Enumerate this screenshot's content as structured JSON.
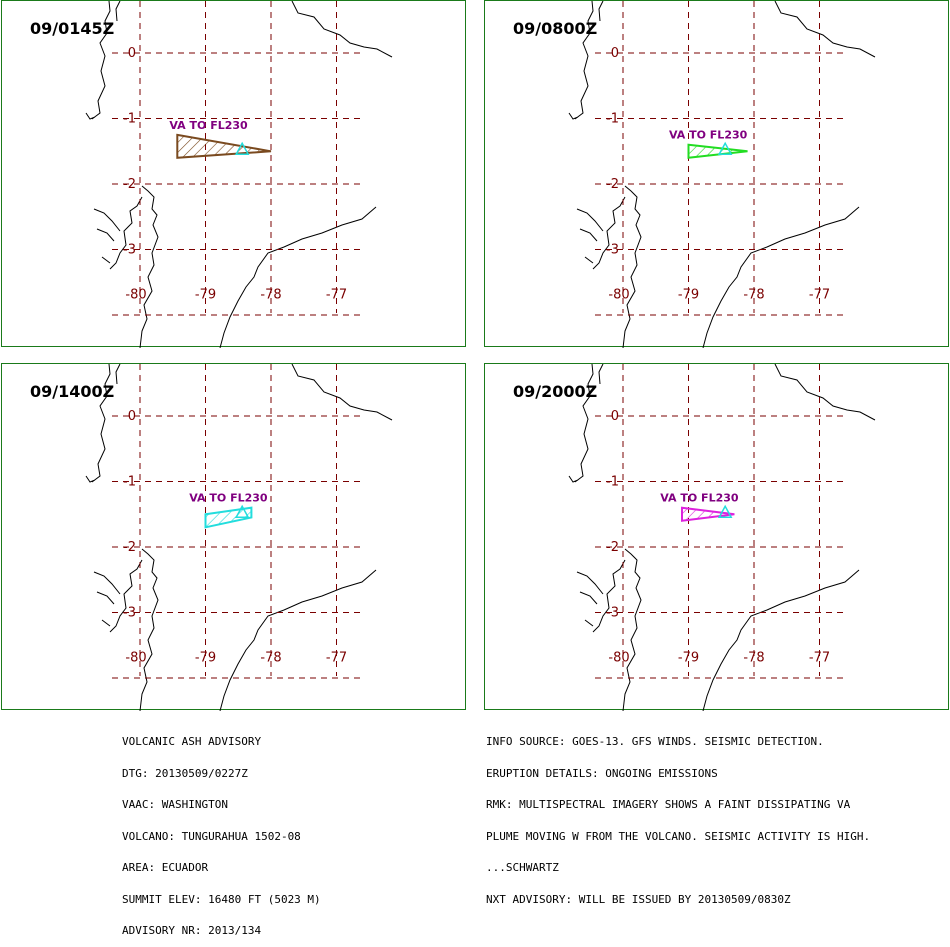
{
  "panels": [
    {
      "time": "09/0145Z",
      "label": "VA TO FL230",
      "color": "#7a4a1f",
      "polygon": [
        [
          -79.43,
          -1.25
        ],
        [
          -78.0,
          -1.5
        ],
        [
          -79.43,
          -1.6
        ]
      ]
    },
    {
      "time": "09/0800Z",
      "label": "VA TO FL230",
      "color": "#22dd22",
      "polygon": [
        [
          -79.0,
          -1.4
        ],
        [
          -78.1,
          -1.5
        ],
        [
          -79.0,
          -1.6
        ]
      ]
    },
    {
      "time": "09/1400Z",
      "label": "VA TO FL230",
      "color": "#22dddd",
      "polygon": [
        [
          -79.0,
          -1.5
        ],
        [
          -78.3,
          -1.4
        ],
        [
          -78.3,
          -1.55
        ],
        [
          -79.0,
          -1.7
        ]
      ]
    },
    {
      "time": "09/2000Z",
      "label": "VA TO FL230",
      "color": "#dd22dd",
      "polygon": [
        [
          -79.1,
          -1.4
        ],
        [
          -78.3,
          -1.5
        ],
        [
          -79.1,
          -1.6
        ]
      ]
    }
  ],
  "grid": {
    "lat_labels": [
      "0",
      "-1",
      "-2",
      "-3"
    ],
    "lon_labels": [
      "-80",
      "-79",
      "-78",
      "-77"
    ]
  },
  "volcano": {
    "lon": -78.44,
    "lat": -1.47
  },
  "advisory_left": [
    "VOLCANIC ASH ADVISORY",
    "DTG: 20130509/0227Z",
    "VAAC: WASHINGTON",
    "VOLCANO: TUNGURAHUA 1502-08",
    "AREA: ECUADOR",
    "SUMMIT ELEV: 16480 FT (5023 M)",
    "ADVISORY NR: 2013/134"
  ],
  "advisory_right": [
    "INFO SOURCE: GOES-13. GFS WINDS. SEISMIC DETECTION.",
    "ERUPTION DETAILS: ONGOING EMISSIONS",
    "RMK: MULTISPECTRAL IMAGERY SHOWS A FAINT DISSIPATING VA",
    "PLUME MOVING W FROM THE VOLCANO. SEISMIC ACTIVITY IS HIGH.",
    "...SCHWARTZ",
    "NXT ADVISORY: WILL BE ISSUED BY 20130509/0830Z"
  ]
}
